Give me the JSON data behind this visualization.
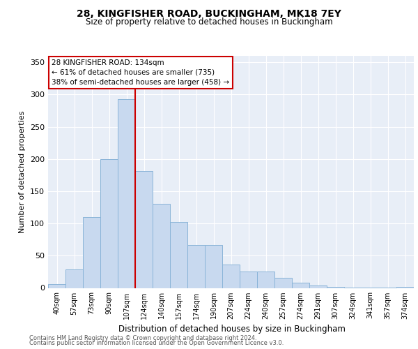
{
  "title_line1": "28, KINGFISHER ROAD, BUCKINGHAM, MK18 7EY",
  "title_line2": "Size of property relative to detached houses in Buckingham",
  "xlabel": "Distribution of detached houses by size in Buckingham",
  "ylabel": "Number of detached properties",
  "categories": [
    "40sqm",
    "57sqm",
    "73sqm",
    "90sqm",
    "107sqm",
    "124sqm",
    "140sqm",
    "157sqm",
    "174sqm",
    "190sqm",
    "207sqm",
    "224sqm",
    "240sqm",
    "257sqm",
    "274sqm",
    "291sqm",
    "307sqm",
    "324sqm",
    "341sqm",
    "357sqm",
    "374sqm"
  ],
  "values": [
    6,
    29,
    110,
    200,
    293,
    181,
    131,
    102,
    67,
    67,
    36,
    25,
    25,
    16,
    8,
    4,
    2,
    1,
    1,
    1,
    2
  ],
  "bar_color": "#c8d9ef",
  "bar_edge_color": "#8ab4d8",
  "vline_color": "#cc0000",
  "annotation_title": "28 KINGFISHER ROAD: 134sqm",
  "annotation_line1": "← 61% of detached houses are smaller (735)",
  "annotation_line2": "38% of semi-detached houses are larger (458) →",
  "annotation_box_color": "#ffffff",
  "annotation_box_edge": "#cc0000",
  "ylim": [
    0,
    360
  ],
  "yticks": [
    0,
    50,
    100,
    150,
    200,
    250,
    300,
    350
  ],
  "footer_line1": "Contains HM Land Registry data © Crown copyright and database right 2024.",
  "footer_line2": "Contains public sector information licensed under the Open Government Licence v3.0.",
  "plot_bg_color": "#e8eef7"
}
